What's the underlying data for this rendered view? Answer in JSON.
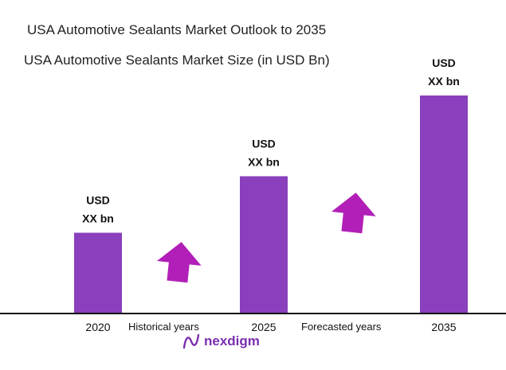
{
  "header": {
    "title": "USA Automotive Sealants Market Outlook to 2035",
    "subtitle": "USA Automotive Sealants Market Size (in USD Bn)"
  },
  "chart_data": {
    "type": "bar",
    "categories": [
      "2020",
      "2025",
      "2035"
    ],
    "values": [
      1,
      1.7,
      2.7
    ],
    "data_labels": [
      [
        "USD",
        "XX bn"
      ],
      [
        "USD",
        "XX bn"
      ],
      [
        "USD",
        "XX bn"
      ]
    ],
    "title": "USA Automotive Sealants Market Size (in USD Bn)",
    "xlabel": "",
    "ylabel": "",
    "ylim": [
      0,
      2.7
    ],
    "grid": false,
    "bar_color": "#8a3fbd",
    "arrow_color": "#b11fb8",
    "period_labels": [
      "Historical years",
      "Forecasted years"
    ]
  },
  "brand": {
    "name": "nexdigm",
    "color": "#7a2fb0"
  }
}
